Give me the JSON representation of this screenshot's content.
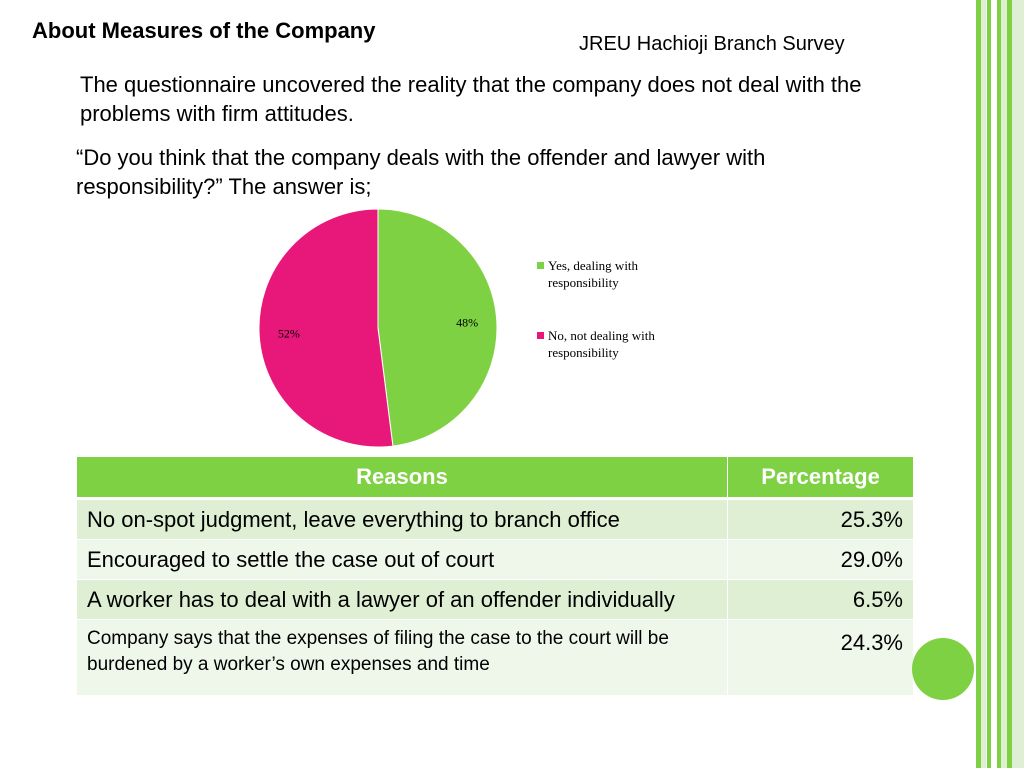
{
  "slide": {
    "title": "About Measures of the Company",
    "survey_label": "JREU Hachioji Branch Survey",
    "intro": "The questionnaire uncovered the reality that the company does not deal with the problems with firm attitudes.",
    "question": "“Do you think that the company deals with the offender and lawyer with responsibility?”   The answer is;"
  },
  "colors": {
    "accent_green": "#7ed143",
    "pie_magenta": "#e8187a",
    "row_odd": "#deefd4",
    "row_even": "#eff7eb"
  },
  "chart_data": {
    "type": "pie",
    "slices": [
      {
        "label": "Yes, dealing with responsibility",
        "value": 48,
        "display": "48%",
        "color": "#7ed143"
      },
      {
        "label": "No, not dealing with responsibility",
        "value": 52,
        "display": "52%",
        "color": "#e8187a"
      }
    ],
    "legend_position": "right"
  },
  "table": {
    "headers": {
      "reason": "Reasons",
      "percentage": "Percentage"
    },
    "rows": [
      {
        "reason": "No on-spot judgment, leave everything to branch office",
        "percentage": "25.3%"
      },
      {
        "reason": "Encouraged to settle the case out of court",
        "percentage": "29.0%"
      },
      {
        "reason": "A worker has to deal with a lawyer of an offender individually",
        "percentage": "6.5%"
      },
      {
        "reason": "Company says that the expenses of filing the case to the court will be burdened by a worker’s own expenses and time",
        "percentage": "24.3%"
      }
    ]
  }
}
